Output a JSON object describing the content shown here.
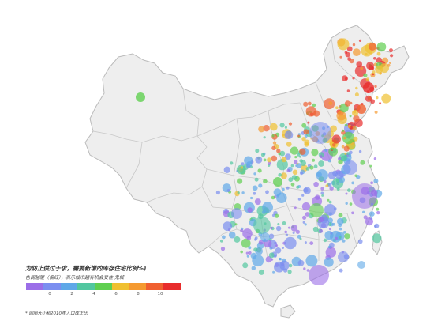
{
  "legend": {
    "title": "为防止供过于求，需要新增的库存住宅比例%)",
    "subtitle": "色调越暖（偏红），表示城市越有机会受住 鬼城",
    "colors": [
      "#9b6ee8",
      "#7b8ef0",
      "#5fa8e8",
      "#52c7a0",
      "#5fcf50",
      "#f0c030",
      "#f59a30",
      "#f06030",
      "#e82c2c"
    ],
    "ticks": [
      "0",
      "2",
      "4",
      "6",
      "8",
      "10"
    ],
    "footnote": "* 圆圈大小和2010年人口成正比"
  },
  "map": {
    "land_color": "#eeeeee",
    "border_color": "#bbbbbb"
  }
}
